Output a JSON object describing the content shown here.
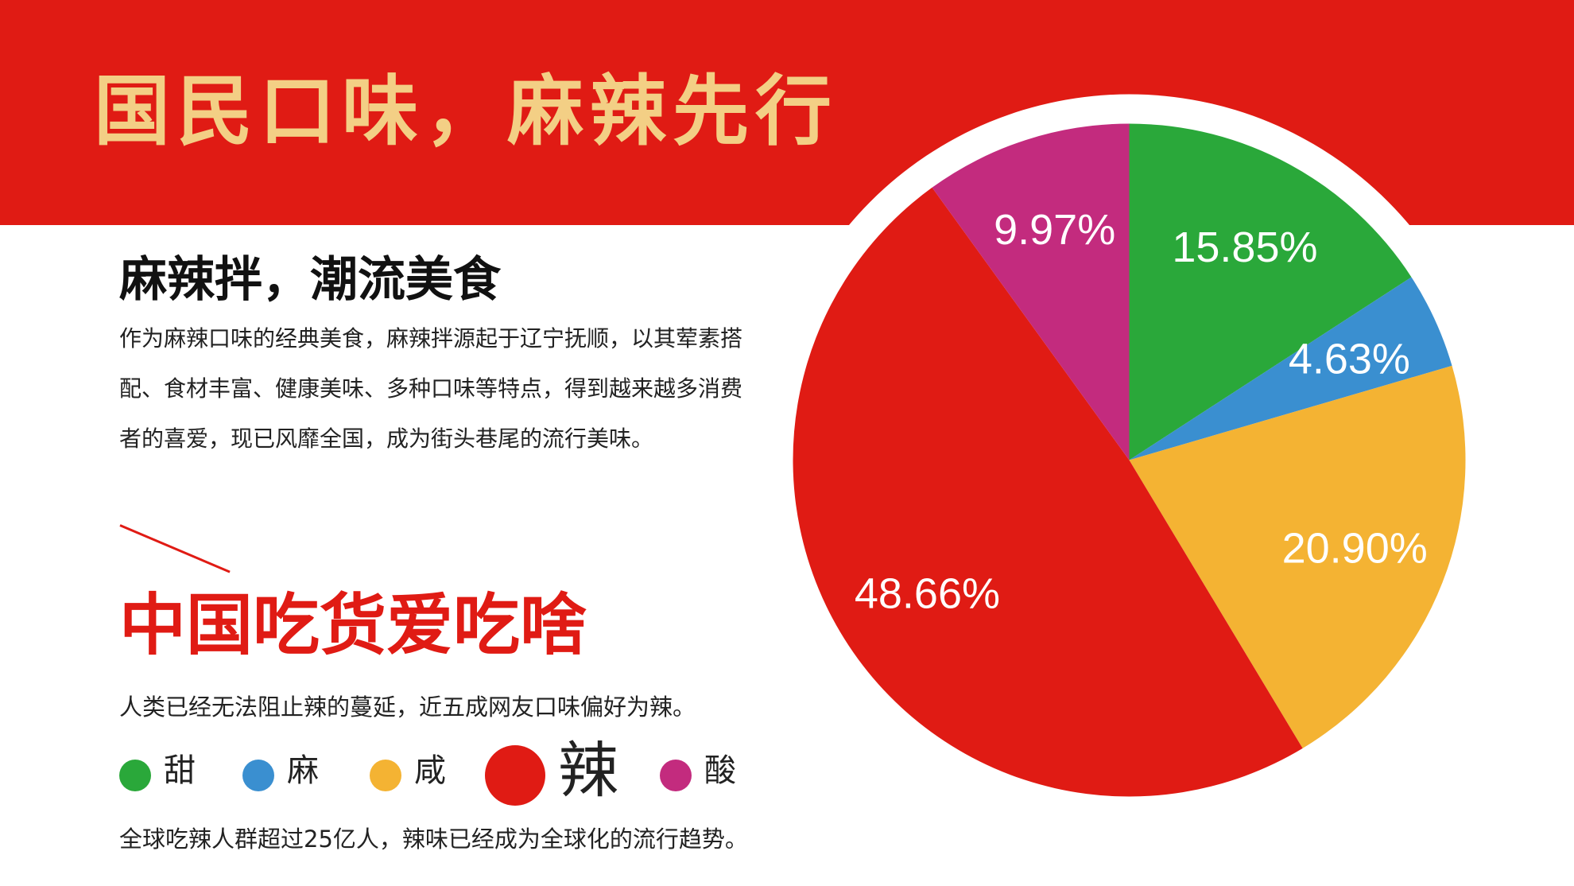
{
  "header": {
    "title": "国民口味，麻辣先行"
  },
  "section": {
    "subtitle": "麻辣拌，潮流美食",
    "intro": "作为麻辣口味的经典美食，麻辣拌源起于辽宁抚顺，以其荤素搭配、食材丰富、健康美味、多种口味等特点，得到越来越多消费者的喜爱，现已风靡全国，成为街头巷尾的流行美味。",
    "headline": "中国吃货爱吃啥",
    "desc1": "人类已经无法阻止辣的蔓延，近五成网友口味偏好为辣。",
    "desc2": "全球吃辣人群超过25亿人，辣味已经成为全球化的流行趋势。"
  },
  "legend": {
    "items": [
      {
        "label": "甜",
        "color": "#2aa83a",
        "emphasis": false
      },
      {
        "label": "麻",
        "color": "#3a8fd0",
        "emphasis": false
      },
      {
        "label": "咸",
        "color": "#f4b333",
        "emphasis": false
      },
      {
        "label": "辣",
        "color": "#e01b14",
        "emphasis": true
      },
      {
        "label": "酸",
        "color": "#c32b7e",
        "emphasis": false
      }
    ]
  },
  "chart_data": {
    "type": "pie",
    "categories": [
      "甜",
      "麻",
      "咸",
      "辣",
      "酸"
    ],
    "values": [
      15.85,
      4.63,
      20.9,
      48.66,
      9.97
    ],
    "labels": [
      "15.85%",
      "4.63%",
      "20.90%",
      "48.66%",
      "9.97%"
    ],
    "colors": [
      "#2aa83a",
      "#3a8fd0",
      "#f4b333",
      "#e01b14",
      "#c32b7e"
    ],
    "start_angle_deg": 0,
    "direction": "clockwise",
    "legend_position": "bottom-left"
  }
}
